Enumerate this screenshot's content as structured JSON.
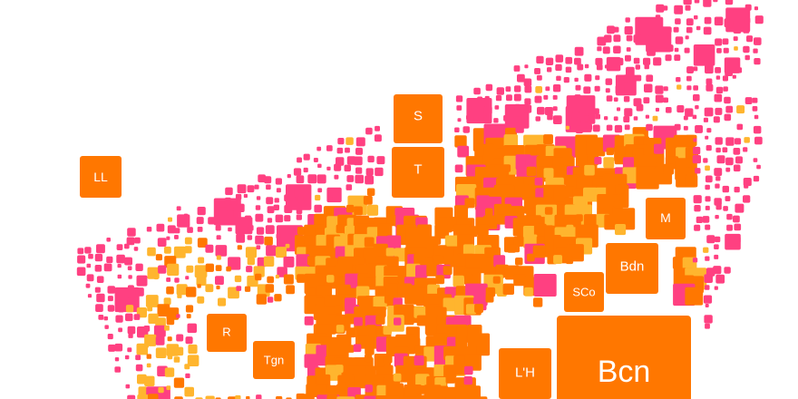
{
  "map": {
    "colors": {
      "pink": "#ff4081",
      "orange": "#ff7700",
      "yellow": "#ffb52e"
    },
    "labels": {
      "lleida": "LL",
      "solsona": "S",
      "tarrega": "T",
      "manresa": "M",
      "badalona": "Bdn",
      "santa_coloma": "SCo",
      "reus": "R",
      "tarragona": "Tgn",
      "hospitalet": "L'H",
      "barcelona": "Bcn"
    }
  }
}
